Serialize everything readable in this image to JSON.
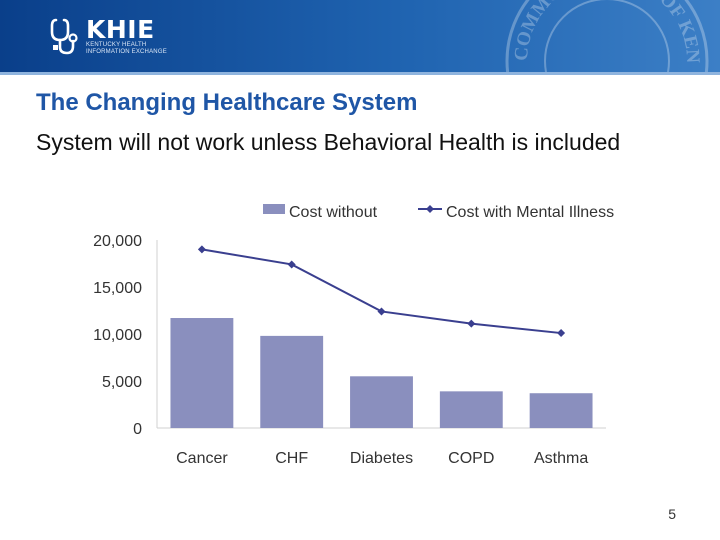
{
  "header": {
    "logo": {
      "name": "KHIE",
      "subtitle_line1": "KENTUCKY HEALTH",
      "subtitle_line2": "INFORMATION EXCHANGE"
    },
    "seal_text": "COMMONWEALTH OF KENTUCKY · UNITED WE STAND",
    "colors": {
      "band": "#1f63b0",
      "rule": "#8fb4de"
    }
  },
  "slide": {
    "title": "The Changing Healthcare System",
    "subtitle": "System will not work unless Behavioral Health is included",
    "page_number": "5"
  },
  "chart_data": {
    "type": "bar",
    "title": "",
    "xlabel": "",
    "ylabel": "",
    "categories": [
      "Cancer",
      "CHF",
      "Diabetes",
      "COPD",
      "Asthma"
    ],
    "series": [
      {
        "name": "Cost without",
        "type": "bar",
        "color": "#8a8fbe",
        "values": [
          11700,
          9800,
          5500,
          3900,
          3700
        ]
      },
      {
        "name": "Cost with Mental Illness",
        "type": "line",
        "color": "#3a3f8f",
        "values": [
          19000,
          17400,
          12400,
          11100,
          10100
        ]
      }
    ],
    "ylim": [
      0,
      20000
    ],
    "yticks": [
      0,
      5000,
      10000,
      15000,
      20000
    ],
    "ytick_labels": [
      "0",
      "5,000",
      "10,000",
      "15,000",
      "20,000"
    ],
    "grid": false,
    "legend_position": "top"
  }
}
